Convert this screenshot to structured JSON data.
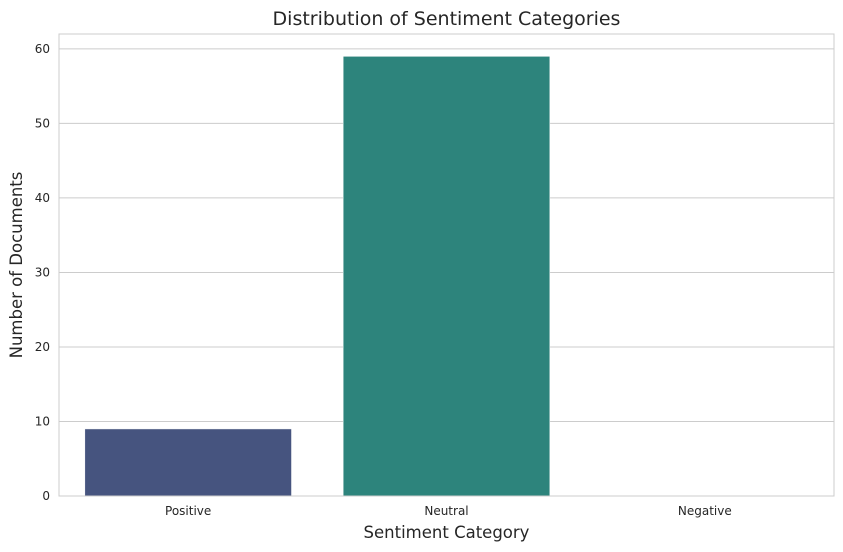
{
  "chart_data": {
    "type": "bar",
    "title": "Distribution of Sentiment Categories",
    "xlabel": "Sentiment Category",
    "ylabel": "Number of Documents",
    "categories": [
      "Positive",
      "Neutral",
      "Negative"
    ],
    "values": [
      9,
      59,
      0
    ],
    "colors": [
      "#46547f",
      "#2d847c",
      "#6fbf73"
    ],
    "ylim": [
      0,
      62
    ],
    "yticks": [
      "0",
      "10",
      "20",
      "30",
      "40",
      "50",
      "60"
    ],
    "grid": true,
    "background": "#ffffff",
    "grid_color": "#cccccc",
    "spine_color": "#cccccc",
    "text_color": "#262626"
  }
}
